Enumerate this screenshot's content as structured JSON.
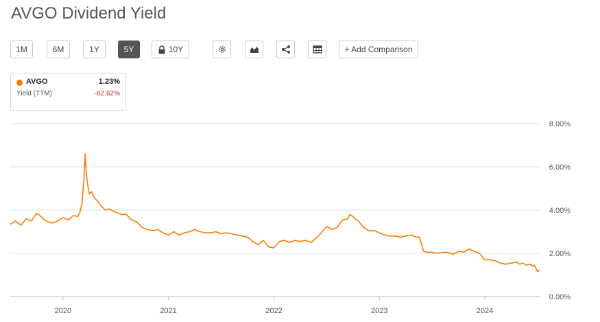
{
  "title": "AVGO Dividend Yield",
  "toolbar": {
    "ranges": [
      "1M",
      "6M",
      "1Y",
      "5Y",
      "10Y"
    ],
    "active_range": "5Y",
    "locked_range": "10Y",
    "icons": [
      "settings-icon",
      "chart-type-icon",
      "share-icon",
      "table-icon"
    ],
    "add_comparison": "+ Add Comparison"
  },
  "legend": {
    "ticker": "AVGO",
    "metric": "Yield (TTM)",
    "value": "1.23%",
    "change": "-62.62%",
    "dot_color": "#f57c00",
    "change_color": "#c62828"
  },
  "colors": {
    "line": "#f57c00",
    "grid": "#e2e2e2",
    "axis_text": "#555555"
  },
  "chart_data": {
    "type": "line",
    "title": "AVGO Dividend Yield",
    "x_ticks": [
      "2020",
      "2021",
      "2022",
      "2023",
      "2024"
    ],
    "y_ticks": [
      "0.00%",
      "2.00%",
      "4.00%",
      "6.00%",
      "8.00%"
    ],
    "ylim": [
      0,
      8
    ],
    "xlim": [
      2019.5,
      2024.52
    ],
    "grid": true,
    "y_axis_side": "right",
    "series": [
      {
        "name": "AVGO",
        "x": [
          2019.5,
          2019.55,
          2019.6,
          2019.65,
          2019.7,
          2019.75,
          2019.78,
          2019.82,
          2019.86,
          2019.9,
          2019.95,
          2020.0,
          2020.05,
          2020.1,
          2020.14,
          2020.16,
          2020.18,
          2020.2,
          2020.21,
          2020.22,
          2020.23,
          2020.24,
          2020.25,
          2020.27,
          2020.3,
          2020.33,
          2020.36,
          2020.4,
          2020.43,
          2020.46,
          2020.5,
          2020.55,
          2020.6,
          2020.65,
          2020.7,
          2020.75,
          2020.8,
          2020.85,
          2020.9,
          2020.95,
          2021.0,
          2021.05,
          2021.1,
          2021.15,
          2021.2,
          2021.25,
          2021.3,
          2021.35,
          2021.4,
          2021.45,
          2021.5,
          2021.55,
          2021.6,
          2021.65,
          2021.7,
          2021.75,
          2021.8,
          2021.85,
          2021.9,
          2021.95,
          2022.0,
          2022.05,
          2022.1,
          2022.15,
          2022.2,
          2022.25,
          2022.3,
          2022.35,
          2022.4,
          2022.45,
          2022.5,
          2022.55,
          2022.6,
          2022.65,
          2022.7,
          2022.72,
          2022.75,
          2022.78,
          2022.8,
          2022.85,
          2022.9,
          2022.95,
          2023.0,
          2023.05,
          2023.1,
          2023.15,
          2023.2,
          2023.25,
          2023.3,
          2023.35,
          2023.38,
          2023.4,
          2023.42,
          2023.45,
          2023.5,
          2023.55,
          2023.6,
          2023.65,
          2023.7,
          2023.75,
          2023.8,
          2023.85,
          2023.9,
          2023.95,
          2024.0,
          2024.05,
          2024.1,
          2024.15,
          2024.2,
          2024.25,
          2024.3,
          2024.33,
          2024.36,
          2024.4,
          2024.43,
          2024.45,
          2024.47,
          2024.5,
          2024.52
        ],
        "y": [
          3.35,
          3.5,
          3.3,
          3.6,
          3.5,
          3.85,
          3.75,
          3.55,
          3.45,
          3.4,
          3.5,
          3.65,
          3.55,
          3.75,
          3.7,
          3.9,
          4.3,
          5.5,
          6.6,
          5.8,
          5.3,
          5.0,
          4.75,
          4.85,
          4.55,
          4.4,
          4.2,
          4.0,
          4.05,
          4.0,
          3.9,
          3.8,
          3.8,
          3.55,
          3.45,
          3.2,
          3.1,
          3.05,
          3.1,
          2.95,
          2.85,
          3.0,
          2.85,
          2.95,
          3.0,
          3.1,
          3.0,
          2.95,
          2.95,
          3.0,
          2.9,
          2.95,
          2.9,
          2.85,
          2.8,
          2.75,
          2.55,
          2.4,
          2.6,
          2.3,
          2.25,
          2.55,
          2.6,
          2.5,
          2.6,
          2.55,
          2.6,
          2.5,
          2.7,
          2.95,
          3.25,
          3.1,
          3.2,
          3.55,
          3.6,
          3.8,
          3.7,
          3.55,
          3.5,
          3.2,
          3.05,
          3.05,
          2.95,
          2.85,
          2.8,
          2.8,
          2.75,
          2.8,
          2.85,
          2.75,
          2.75,
          2.4,
          2.1,
          2.05,
          2.05,
          2.0,
          2.05,
          2.05,
          1.95,
          2.1,
          2.05,
          2.2,
          2.1,
          2.0,
          1.7,
          1.7,
          1.65,
          1.55,
          1.5,
          1.55,
          1.6,
          1.5,
          1.55,
          1.45,
          1.5,
          1.4,
          1.45,
          1.15,
          1.23
        ]
      }
    ]
  }
}
